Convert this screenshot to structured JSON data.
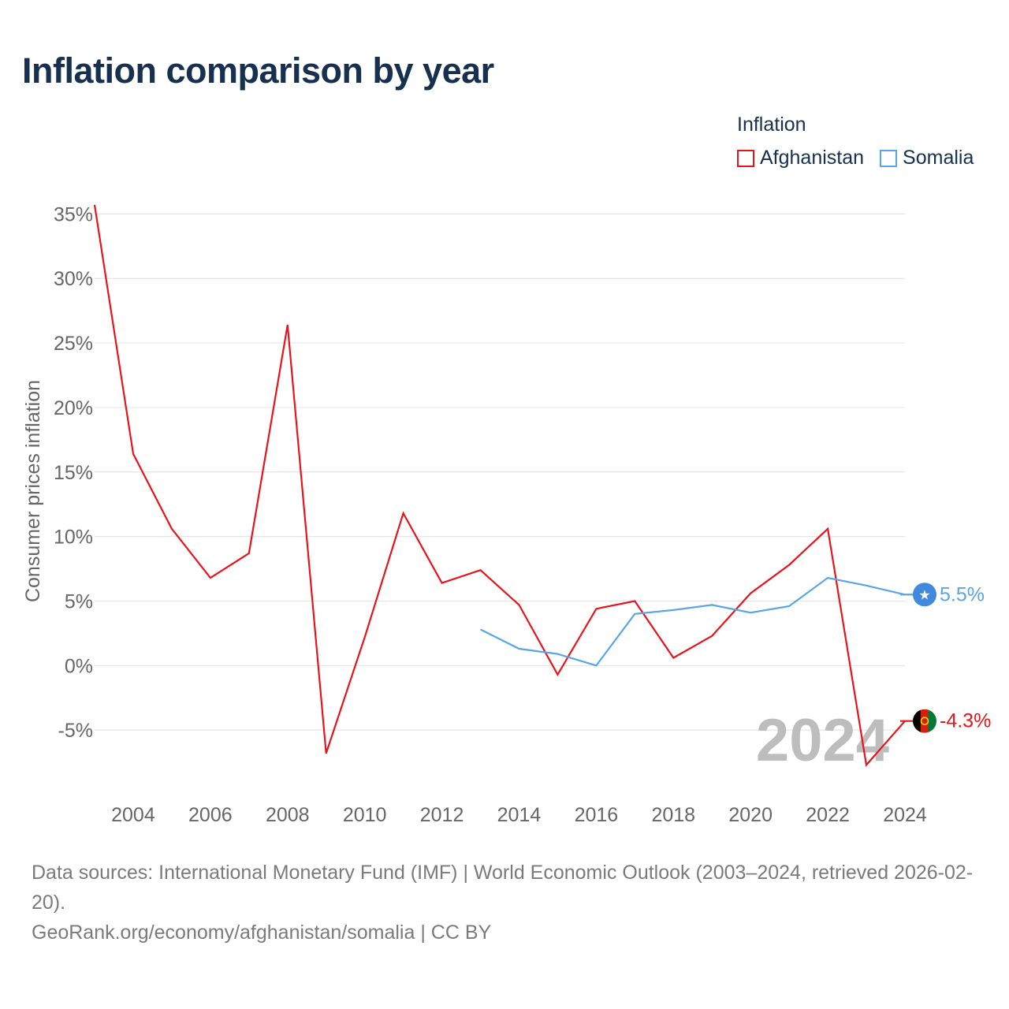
{
  "title": "Inflation comparison by year",
  "legend": {
    "title": "Inflation",
    "items": [
      {
        "label": "Afghanistan",
        "color": "#e8131b"
      },
      {
        "label": "Somalia",
        "color": "#5aa5e6"
      }
    ]
  },
  "footer": {
    "sources": "Data sources: International Monetary Fund (IMF) | World Economic Outlook (2003–2024, retrieved 2026-02-20).",
    "credit": "GeoRank.org/economy/afghanistan/somalia | CC BY"
  },
  "chart_data": {
    "type": "line",
    "title": "Inflation comparison by year",
    "xlabel": "",
    "ylabel": "Consumer prices inflation",
    "xlim": [
      2003,
      2024
    ],
    "ylim": [
      -10,
      36
    ],
    "yticks": [
      -5,
      0,
      5,
      10,
      15,
      20,
      25,
      30,
      35
    ],
    "ytick_labels": [
      "-5%",
      "0%",
      "5%",
      "10%",
      "15%",
      "20%",
      "25%",
      "30%",
      "35%"
    ],
    "xticks": [
      2004,
      2006,
      2008,
      2010,
      2012,
      2014,
      2016,
      2018,
      2020,
      2022,
      2024
    ],
    "xtick_labels": [
      "2004",
      "2006",
      "2008",
      "2010",
      "2012",
      "2014",
      "2016",
      "2018",
      "2020",
      "2022",
      "2024"
    ],
    "grid": true,
    "year_watermark": "2024",
    "series": [
      {
        "name": "Afghanistan",
        "color": "#e8131b",
        "end_label": "-4.3%",
        "flag": "afghanistan-flag",
        "x": [
          2003,
          2004,
          2005,
          2006,
          2007,
          2008,
          2009,
          2010,
          2011,
          2012,
          2013,
          2014,
          2015,
          2016,
          2017,
          2018,
          2019,
          2020,
          2021,
          2022,
          2023,
          2024
        ],
        "values": [
          35.7,
          16.4,
          10.6,
          6.8,
          8.7,
          26.4,
          -6.8,
          2.2,
          11.8,
          6.4,
          7.4,
          4.7,
          -0.7,
          4.4,
          5.0,
          0.6,
          2.3,
          5.6,
          7.8,
          10.6,
          -7.7,
          -4.3
        ]
      },
      {
        "name": "Somalia",
        "color": "#5aa5e6",
        "end_label": "5.5%",
        "flag": "somalia-flag",
        "x": [
          2013,
          2014,
          2015,
          2016,
          2017,
          2018,
          2019,
          2020,
          2021,
          2022,
          2023,
          2024
        ],
        "values": [
          2.8,
          1.3,
          0.9,
          0.0,
          4.0,
          4.3,
          4.7,
          4.1,
          4.6,
          6.8,
          6.2,
          5.5
        ]
      }
    ]
  }
}
